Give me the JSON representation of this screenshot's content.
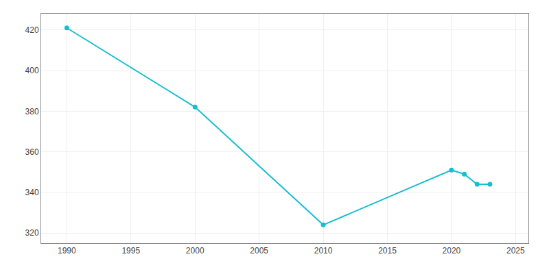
{
  "chart_data": {
    "type": "line",
    "x": [
      1990,
      2000,
      2010,
      2020,
      2021,
      2022,
      2023
    ],
    "values": [
      421,
      382,
      324,
      351,
      349,
      344,
      344
    ],
    "color": "#17BECF",
    "marker": "circle",
    "xlim": [
      1988,
      2026
    ],
    "ylim": [
      315,
      428
    ],
    "xticks": [
      1990,
      1995,
      2000,
      2005,
      2010,
      2015,
      2020,
      2025
    ],
    "yticks": [
      320,
      340,
      360,
      380,
      400,
      420
    ],
    "grid": true
  }
}
